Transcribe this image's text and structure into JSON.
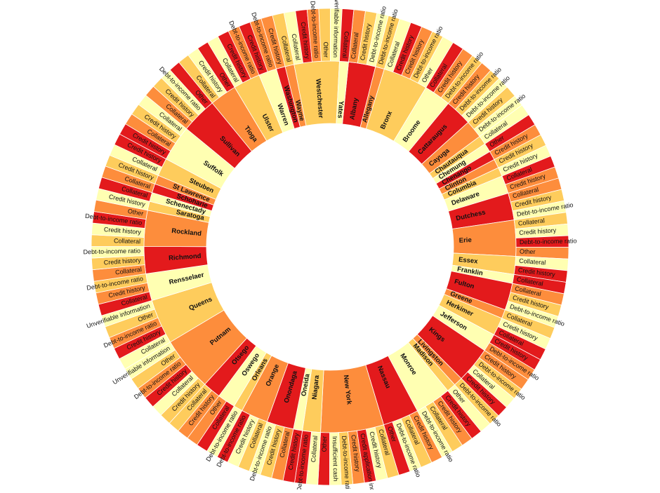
{
  "chart_data": {
    "type": "sunburst",
    "title": "",
    "colors": [
      "#e31a1c",
      "#fd8d3c",
      "#fecc5c",
      "#ffffb2"
    ],
    "children": [
      {
        "name": "Albany",
        "value": 3,
        "children": [
          {
            "name": "Collateral",
            "value": 1
          },
          {
            "name": "Credit history",
            "value": 1
          },
          {
            "name": "Debt-to-income ratio",
            "value": 1
          }
        ]
      },
      {
        "name": "Allegany",
        "value": 1,
        "children": [
          {
            "name": "Debt-to-income ratio",
            "value": 1
          }
        ]
      },
      {
        "name": "Bronx",
        "value": 5,
        "children": [
          {
            "name": "Collateral",
            "value": 1
          },
          {
            "name": "Credit history",
            "value": 1
          },
          {
            "name": "Credit history",
            "value": 1
          },
          {
            "name": "Debt-to-income ratio",
            "value": 1
          },
          {
            "name": "Other",
            "value": 1
          }
        ]
      },
      {
        "name": "Broome",
        "value": 3,
        "children": [
          {
            "name": "Collateral",
            "value": 1
          },
          {
            "name": "Credit history",
            "value": 1
          },
          {
            "name": "Debt-to-income ratio",
            "value": 1
          }
        ]
      },
      {
        "name": "Cattaraugus",
        "value": 3,
        "children": [
          {
            "name": "Credit history",
            "value": 1
          },
          {
            "name": "Debt-to-income ratio",
            "value": 1
          },
          {
            "name": "Debt-to-income ratio",
            "value": 1
          }
        ]
      },
      {
        "name": "Cayuga",
        "value": 2,
        "children": [
          {
            "name": "Credit history",
            "value": 1
          },
          {
            "name": "Debt-to-income ratio",
            "value": 1
          }
        ]
      },
      {
        "name": "Chautauqua",
        "value": 1,
        "children": [
          {
            "name": "Collateral",
            "value": 1
          }
        ]
      },
      {
        "name": "Chemung",
        "value": 1,
        "children": [
          {
            "name": "Other",
            "value": 1
          }
        ]
      },
      {
        "name": "Chenango",
        "value": 1,
        "children": [
          {
            "name": "Credit history",
            "value": 1
          }
        ]
      },
      {
        "name": "Clinton",
        "value": 1,
        "children": [
          {
            "name": "Credit history",
            "value": 1
          }
        ]
      },
      {
        "name": "Columbia",
        "value": 1,
        "children": [
          {
            "name": "Credit history",
            "value": 1
          }
        ]
      },
      {
        "name": "Delaware",
        "value": 2,
        "children": [
          {
            "name": "Collateral",
            "value": 1
          },
          {
            "name": "Credit history",
            "value": 1
          }
        ]
      },
      {
        "name": "Dutchess",
        "value": 3,
        "children": [
          {
            "name": "Collateral",
            "value": 1
          },
          {
            "name": "Credit history",
            "value": 1
          },
          {
            "name": "Debt-to-income ratio",
            "value": 1
          }
        ]
      },
      {
        "name": "Erie",
        "value": 4,
        "children": [
          {
            "name": "Collateral",
            "value": 1
          },
          {
            "name": "Credit history",
            "value": 1
          },
          {
            "name": "Debt-to-income ratio",
            "value": 1
          },
          {
            "name": "Other",
            "value": 1
          }
        ]
      },
      {
        "name": "Essex",
        "value": 2,
        "children": [
          {
            "name": "Collateral",
            "value": 1
          },
          {
            "name": "Credit history",
            "value": 1
          }
        ]
      },
      {
        "name": "Franklin",
        "value": 1,
        "children": [
          {
            "name": "Collateral",
            "value": 1
          }
        ]
      },
      {
        "name": "Fulton",
        "value": 3,
        "children": [
          {
            "name": "Collateral",
            "value": 1
          },
          {
            "name": "Credit history",
            "value": 1
          },
          {
            "name": "Debt-to-income ratio",
            "value": 1
          }
        ]
      },
      {
        "name": "Greene",
        "value": 1,
        "children": [
          {
            "name": "Collateral",
            "value": 1
          }
        ]
      },
      {
        "name": "Herkimer",
        "value": 2,
        "children": [
          {
            "name": "Credit history",
            "value": 1
          },
          {
            "name": "Collateral",
            "value": 1
          }
        ]
      },
      {
        "name": "Jefferson",
        "value": 2,
        "children": [
          {
            "name": "Credit history",
            "value": 1
          },
          {
            "name": "Debt-to-income ratio",
            "value": 1
          }
        ]
      },
      {
        "name": "Kings",
        "value": 4,
        "children": [
          {
            "name": "Credit history",
            "value": 1
          },
          {
            "name": "Debt-to-income ratio",
            "value": 1
          },
          {
            "name": "Collateral",
            "value": 1
          },
          {
            "name": "Credit history",
            "value": 1
          }
        ]
      },
      {
        "name": "Livingston",
        "value": 1,
        "children": [
          {
            "name": "Debt-to-income ratio",
            "value": 1
          }
        ]
      },
      {
        "name": "Madison",
        "value": 1,
        "children": [
          {
            "name": "Other",
            "value": 1
          }
        ]
      },
      {
        "name": "Monroe",
        "value": 4,
        "children": [
          {
            "name": "Credit history",
            "value": 1
          },
          {
            "name": "Credit history",
            "value": 1
          },
          {
            "name": "Collateral",
            "value": 1
          },
          {
            "name": "Debt-to-income ratio",
            "value": 1
          }
        ]
      },
      {
        "name": "Nassau",
        "value": 4,
        "children": [
          {
            "name": "Credit history",
            "value": 1
          },
          {
            "name": "Collateral",
            "value": 1
          },
          {
            "name": "Debt-to-income ratio",
            "value": 1
          },
          {
            "name": "Other",
            "value": 1
          }
        ]
      },
      {
        "name": "New York",
        "value": 7,
        "children": [
          {
            "name": "Collateral",
            "value": 1
          },
          {
            "name": "Credit history",
            "value": 1
          },
          {
            "name": "Credit application incomplete",
            "value": 1
          },
          {
            "name": "Credit history",
            "value": 1
          },
          {
            "name": "Debt-to-income ratio",
            "value": 1
          },
          {
            "name": "Insufficient cash",
            "value": 1
          },
          {
            "name": "Other",
            "value": 1
          }
        ]
      },
      {
        "name": "Niagara",
        "value": 2,
        "children": [
          {
            "name": "Collateral",
            "value": 1
          },
          {
            "name": "Debt-to-income ratio",
            "value": 1
          }
        ]
      },
      {
        "name": "Oneida",
        "value": 1,
        "children": [
          {
            "name": "Credit history",
            "value": 1
          }
        ]
      },
      {
        "name": "Onondaga",
        "value": 3,
        "children": [
          {
            "name": "Collateral",
            "value": 1
          },
          {
            "name": "Credit history",
            "value": 1
          },
          {
            "name": "Debt-to-income ratio",
            "value": 1
          }
        ]
      },
      {
        "name": "Orange",
        "value": 3,
        "children": [
          {
            "name": "Collateral",
            "value": 1
          },
          {
            "name": "Credit history",
            "value": 1
          },
          {
            "name": "Debt-to-income ratio",
            "value": 1
          }
        ]
      },
      {
        "name": "Orleans",
        "value": 1,
        "children": [
          {
            "name": "Debt-to-income ratio",
            "value": 1
          }
        ]
      },
      {
        "name": "Oswego",
        "value": 2,
        "children": [
          {
            "name": "Collateral",
            "value": 1
          },
          {
            "name": "Other",
            "value": 1
          }
        ]
      },
      {
        "name": "Otsego",
        "value": 2,
        "children": [
          {
            "name": "Credit history",
            "value": 1
          },
          {
            "name": "Collateral",
            "value": 1
          }
        ]
      },
      {
        "name": "Putnam",
        "value": 6,
        "children": [
          {
            "name": "Credit history",
            "value": 1
          },
          {
            "name": "Collateral",
            "value": 1
          },
          {
            "name": "Credit history",
            "value": 1
          },
          {
            "name": "Debt-to-income ratio",
            "value": 1
          },
          {
            "name": "Other",
            "value": 1
          },
          {
            "name": "Unverifiable information",
            "value": 1
          }
        ]
      },
      {
        "name": "Queens",
        "value": 5,
        "children": [
          {
            "name": "Collateral",
            "value": 1
          },
          {
            "name": "Credit history",
            "value": 1
          },
          {
            "name": "Debt-to-income ratio",
            "value": 1
          },
          {
            "name": "Other",
            "value": 1
          },
          {
            "name": "Unverifiable information",
            "value": 1
          }
        ]
      },
      {
        "name": "Rensselaer",
        "value": 3,
        "children": [
          {
            "name": "Collateral",
            "value": 1
          },
          {
            "name": "Credit history",
            "value": 1
          },
          {
            "name": "Debt-to-income ratio",
            "value": 1
          }
        ]
      },
      {
        "name": "Richmond",
        "value": 3,
        "children": [
          {
            "name": "Collateral",
            "value": 1
          },
          {
            "name": "Credit history",
            "value": 1
          },
          {
            "name": "Debt-to-income ratio",
            "value": 1
          }
        ]
      },
      {
        "name": "Rockland",
        "value": 4,
        "children": [
          {
            "name": "Collateral",
            "value": 1
          },
          {
            "name": "Credit history",
            "value": 1
          },
          {
            "name": "Debt-to-income ratio",
            "value": 1
          },
          {
            "name": "Other",
            "value": 1
          }
        ]
      },
      {
        "name": "Saratoga",
        "value": 1,
        "children": [
          {
            "name": "Credit history",
            "value": 1
          }
        ]
      },
      {
        "name": "Schenectady",
        "value": 1,
        "children": [
          {
            "name": "Collateral",
            "value": 1
          }
        ]
      },
      {
        "name": "Schoharie",
        "value": 1,
        "children": [
          {
            "name": "Collateral",
            "value": 1
          }
        ]
      },
      {
        "name": "St Lawrence",
        "value": 1,
        "children": [
          {
            "name": "Credit history",
            "value": 1
          }
        ]
      },
      {
        "name": "Steuben",
        "value": 2,
        "children": [
          {
            "name": "Collateral",
            "value": 1
          },
          {
            "name": "Credit history",
            "value": 1
          }
        ]
      },
      {
        "name": "Suffolk",
        "value": 4,
        "children": [
          {
            "name": "Credit history",
            "value": 1
          },
          {
            "name": "Collateral",
            "value": 1
          },
          {
            "name": "Credit history",
            "value": 1
          },
          {
            "name": "Collateral",
            "value": 1
          }
        ]
      },
      {
        "name": "Sullivan",
        "value": 4,
        "children": [
          {
            "name": "Collateral",
            "value": 1
          },
          {
            "name": "Credit history",
            "value": 1
          },
          {
            "name": "Debt-to-income ratio",
            "value": 1
          },
          {
            "name": "Other",
            "value": 1
          }
        ]
      },
      {
        "name": "Tioga",
        "value": 3,
        "children": [
          {
            "name": "Collateral",
            "value": 1
          },
          {
            "name": "Credit history",
            "value": 1
          },
          {
            "name": "Other",
            "value": 1
          }
        ]
      },
      {
        "name": "Ulster",
        "value": 3,
        "children": [
          {
            "name": "Collateral",
            "value": 1
          },
          {
            "name": "Credit history",
            "value": 1
          },
          {
            "name": "Debt-to-income ratio",
            "value": 1
          }
        ]
      },
      {
        "name": "Warren",
        "value": 2,
        "children": [
          {
            "name": "Credit history",
            "value": 1
          },
          {
            "name": "Debt-to-income ratio",
            "value": 1
          }
        ]
      },
      {
        "name": "Washington",
        "value": 1,
        "children": [
          {
            "name": "Credit history",
            "value": 1
          }
        ]
      },
      {
        "name": "Wayne",
        "value": 1,
        "children": [
          {
            "name": "Collateral",
            "value": 1
          }
        ]
      },
      {
        "name": "Westchester",
        "value": 5,
        "children": [
          {
            "name": "Collateral",
            "value": 1
          },
          {
            "name": "Credit history",
            "value": 1
          },
          {
            "name": "Debt-to-income ratio",
            "value": 1
          },
          {
            "name": "Other",
            "value": 1
          },
          {
            "name": "Unverifiable information",
            "value": 1
          }
        ]
      },
      {
        "name": "Yates",
        "value": 1,
        "children": [
          {
            "name": "Collateral",
            "value": 1
          }
        ]
      }
    ]
  }
}
